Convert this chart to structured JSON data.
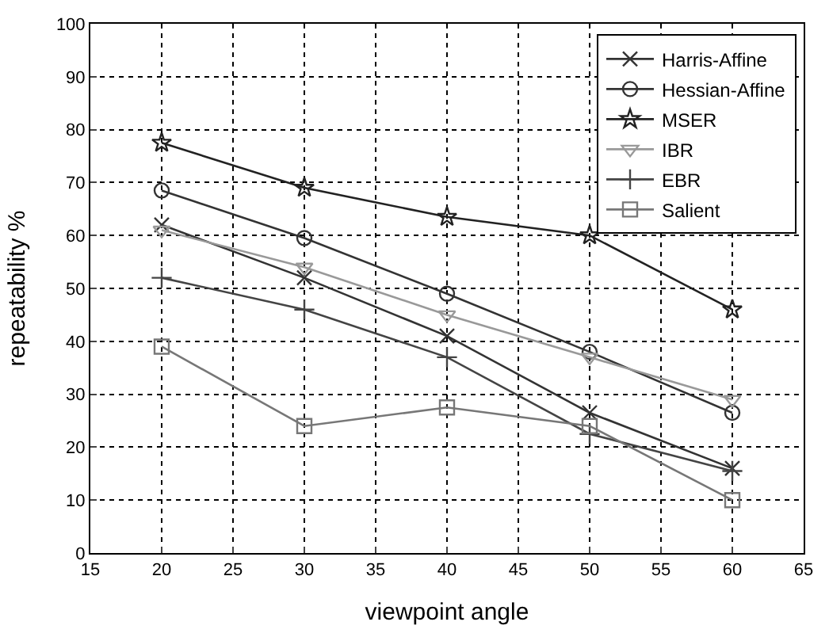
{
  "chart_data": {
    "type": "line",
    "xlabel": "viewpoint angle",
    "ylabel": "repeatability %",
    "x": [
      20,
      30,
      40,
      50,
      60
    ],
    "series": [
      {
        "name": "Harris-Affine",
        "color": "#333333",
        "marker": "x",
        "values": [
          62,
          52,
          41,
          26.5,
          16
        ]
      },
      {
        "name": "Hessian-Affine",
        "color": "#333333",
        "marker": "circle",
        "values": [
          68.5,
          59.5,
          49,
          38,
          26.5
        ]
      },
      {
        "name": "MSER",
        "color": "#222222",
        "marker": "star",
        "values": [
          77.5,
          69,
          63.5,
          60,
          46
        ]
      },
      {
        "name": "IBR",
        "color": "#999999",
        "marker": "triangle",
        "values": [
          61,
          54,
          45,
          37,
          29
        ]
      },
      {
        "name": "EBR",
        "color": "#444444",
        "marker": "cross",
        "values": [
          52,
          46,
          37,
          22.5,
          15.5
        ]
      },
      {
        "name": "Salient",
        "color": "#777777",
        "marker": "square",
        "values": [
          39,
          24,
          27.5,
          24,
          10
        ]
      }
    ],
    "xlim": [
      15,
      65
    ],
    "xticks": [
      15,
      20,
      25,
      30,
      35,
      40,
      45,
      50,
      55,
      60,
      65
    ],
    "ylim": [
      0,
      100
    ],
    "yticks": [
      0,
      10,
      20,
      30,
      40,
      50,
      60,
      70,
      80,
      90,
      100
    ],
    "grid": true,
    "legend": "top right",
    "line_style": "solid"
  }
}
